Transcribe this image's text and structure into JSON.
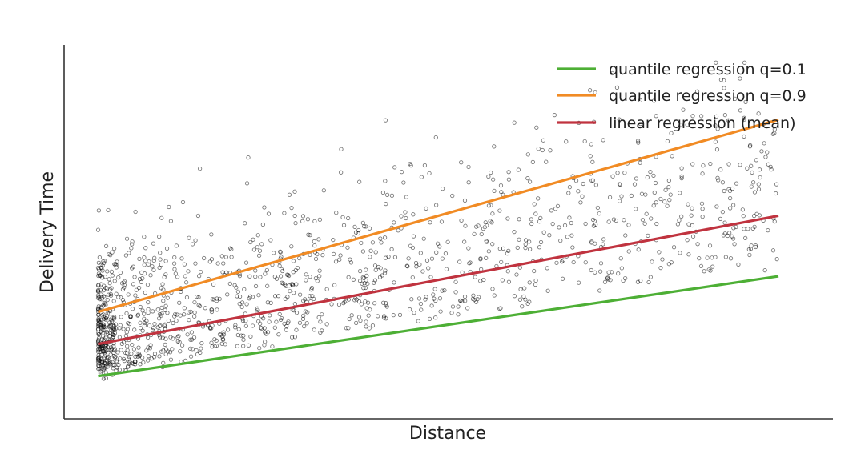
{
  "chart_data": {
    "type": "scatter",
    "title": "",
    "xlabel": "Distance",
    "ylabel": "Delivery Time",
    "xlim": [
      -0.05,
      1.08
    ],
    "ylim": [
      -0.05,
      1.0
    ],
    "xticks": [],
    "yticks": [],
    "grid": false,
    "legend_position": "top-right",
    "scatter": {
      "name": "",
      "color": "#000000",
      "marker": "hollow-circle",
      "point_count": 1400
    },
    "series": [
      {
        "name": "quantile regression q=0.1",
        "type": "line",
        "color": "#4daf35",
        "x": [
          0.0,
          1.0
        ],
        "y": [
          0.07,
          0.35
        ]
      },
      {
        "name": "quantile regression q=0.9",
        "type": "line",
        "color": "#f18b24",
        "x": [
          0.0,
          1.0
        ],
        "y": [
          0.25,
          0.79
        ]
      },
      {
        "name": "linear regression (mean)",
        "type": "line",
        "color": "#c0333f",
        "x": [
          0.0,
          1.0
        ],
        "y": [
          0.16,
          0.52
        ]
      }
    ]
  }
}
